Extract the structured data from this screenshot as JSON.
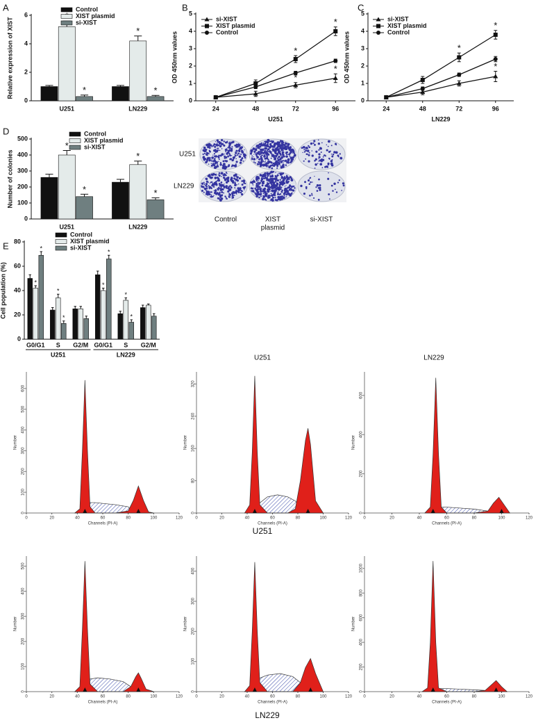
{
  "chart_data": [
    {
      "type": "bar",
      "panel_label": "A",
      "ylabel": "Relative expression of XIST",
      "categories": [
        "U251",
        "LN229"
      ],
      "series": [
        {
          "name": "Control",
          "color": "#111111",
          "values": [
            1,
            1
          ],
          "errors": [
            0.08,
            0.08
          ]
        },
        {
          "name": "XIST plasmid",
          "color": "#e4ebea",
          "values": [
            5.2,
            4.2
          ],
          "errors": [
            0.4,
            0.35
          ],
          "significance": [
            "*",
            "*"
          ]
        },
        {
          "name": "si-XIST",
          "color": "#6f7f80",
          "values": [
            0.3,
            0.3
          ],
          "errors": [
            0.1,
            0.08
          ],
          "significance": [
            "*",
            "*"
          ]
        }
      ],
      "ylim": [
        0,
        6
      ],
      "yticks": [
        0,
        2,
        4,
        6
      ]
    },
    {
      "type": "line",
      "panel_label": "B",
      "ylabel": "OD 450nm values",
      "xlabel": "U251",
      "x": [
        24,
        48,
        72,
        96
      ],
      "xlim": [
        12,
        108
      ],
      "xticks": [
        24,
        48,
        72,
        96
      ],
      "ylim": [
        0,
        5
      ],
      "yticks": [
        0,
        1,
        2,
        3,
        4,
        5
      ],
      "series": [
        {
          "name": "si-XIST",
          "marker": "triangle",
          "color": "#111111",
          "values": [
            0.2,
            0.4,
            0.9,
            1.3
          ],
          "errors": [
            0.05,
            0.15,
            0.15,
            0.25
          ],
          "significance": [
            null,
            null,
            "*",
            "*"
          ]
        },
        {
          "name": "XIST plasmid",
          "marker": "square",
          "color": "#111111",
          "values": [
            0.2,
            1.0,
            2.4,
            4.0
          ],
          "errors": [
            0.05,
            0.2,
            0.2,
            0.25
          ],
          "significance": [
            null,
            null,
            "*",
            "*"
          ]
        },
        {
          "name": "Control",
          "marker": "circle",
          "color": "#111111",
          "values": [
            0.2,
            0.8,
            1.6,
            2.3
          ],
          "errors": [
            0.05,
            0.1,
            0.1,
            0.1
          ]
        }
      ]
    },
    {
      "type": "line",
      "panel_label": "C",
      "ylabel": "OD 450nm values",
      "xlabel": "LN229",
      "x": [
        24,
        48,
        72,
        96
      ],
      "xlim": [
        12,
        108
      ],
      "xticks": [
        24,
        48,
        72,
        96
      ],
      "ylim": [
        0,
        5
      ],
      "yticks": [
        0,
        1,
        2,
        3,
        4,
        5
      ],
      "series": [
        {
          "name": "si-XIST",
          "marker": "triangle",
          "color": "#111111",
          "values": [
            0.2,
            0.5,
            1.0,
            1.4
          ],
          "errors": [
            0.05,
            0.15,
            0.15,
            0.3
          ],
          "significance": [
            null,
            null,
            "*",
            "*"
          ]
        },
        {
          "name": "XIST plasmid",
          "marker": "square",
          "color": "#111111",
          "values": [
            0.2,
            1.2,
            2.5,
            3.8
          ],
          "errors": [
            0.05,
            0.2,
            0.25,
            0.25
          ],
          "significance": [
            null,
            null,
            "*",
            "*"
          ]
        },
        {
          "name": "Control",
          "marker": "circle",
          "color": "#111111",
          "values": [
            0.2,
            0.7,
            1.5,
            2.4
          ],
          "errors": [
            0.05,
            0.1,
            0.1,
            0.15
          ]
        }
      ]
    },
    {
      "type": "bar",
      "panel_label": "D",
      "ylabel": "Number of colonies",
      "categories": [
        "U251",
        "LN229"
      ],
      "series": [
        {
          "name": "Control",
          "color": "#111111",
          "values": [
            260,
            230
          ],
          "errors": [
            20,
            18
          ]
        },
        {
          "name": "XIST plasmid",
          "color": "#e4ebea",
          "values": [
            400,
            340
          ],
          "errors": [
            28,
            22
          ],
          "significance": [
            "*",
            "*"
          ]
        },
        {
          "name": "si-XIST",
          "color": "#6f7f80",
          "values": [
            140,
            120
          ],
          "errors": [
            15,
            12
          ],
          "significance": [
            "*",
            "*"
          ]
        }
      ],
      "ylim": [
        0,
        500
      ],
      "yticks": [
        0,
        100,
        200,
        300,
        400,
        500
      ]
    },
    {
      "type": "bar",
      "panel_label": "E",
      "ylabel": "Cell population (%)",
      "categories": [
        "G0/G1",
        "S",
        "G2/M",
        "G0/G1",
        "S",
        "G2/M"
      ],
      "groups": [
        "U251",
        "LN229"
      ],
      "series": [
        {
          "name": "Control",
          "color": "#111111",
          "values": [
            50,
            24,
            25,
            53,
            21,
            26
          ],
          "errors": [
            3,
            2,
            2,
            3,
            2,
            2
          ]
        },
        {
          "name": "XIST plasmid",
          "color": "#e4ebea",
          "values": [
            42,
            34,
            25,
            40,
            32,
            28
          ],
          "errors": [
            2,
            3,
            2,
            2,
            2,
            1
          ],
          "significance": [
            "*",
            "*",
            null,
            "*",
            "*",
            null
          ]
        },
        {
          "name": "si-XIST",
          "color": "#6f7f80",
          "values": [
            69,
            13,
            17,
            66,
            14,
            19
          ],
          "errors": [
            3,
            2,
            2,
            3,
            2,
            2
          ],
          "significance": [
            "*",
            "*",
            null,
            "*",
            "*",
            null
          ]
        }
      ],
      "ylim": [
        0,
        80
      ],
      "yticks": [
        0,
        20,
        40,
        60,
        80
      ]
    },
    {
      "type": "area",
      "xlabel": "Channels (PI-A)",
      "ylabel": "Number",
      "x": [
        38,
        42,
        44,
        46,
        48,
        50,
        54,
        70,
        80,
        84,
        88,
        92,
        96,
        100
      ],
      "series": [
        {
          "color": "#3848a8",
          "fill": "hatch",
          "values": [
            0,
            0,
            0,
            0,
            40,
            50,
            50,
            40,
            30,
            0,
            0,
            0,
            0,
            0
          ]
        },
        {
          "color": "#e0201a",
          "values": [
            0,
            20,
            300,
            640,
            300,
            30,
            0,
            0,
            10,
            60,
            130,
            60,
            5,
            0
          ]
        }
      ],
      "peak_markers": [
        46,
        88
      ],
      "xlim": [
        0,
        120
      ],
      "xticks": [
        0,
        20,
        40,
        60,
        80,
        100,
        120
      ],
      "ylim": [
        0,
        680
      ],
      "yticks": [
        0,
        100,
        200,
        300,
        400,
        500,
        600
      ]
    },
    {
      "type": "area",
      "xlabel": "Channels (PI-A)",
      "ylabel": "Number",
      "x": [
        38,
        42,
        44,
        46,
        48,
        50,
        56,
        64,
        72,
        78,
        82,
        86,
        88,
        90,
        94,
        100
      ],
      "series": [
        {
          "color": "#3848a8",
          "fill": "hatch",
          "values": [
            0,
            0,
            0,
            0,
            10,
            25,
            40,
            45,
            40,
            30,
            15,
            0,
            0,
            0,
            0,
            0
          ]
        },
        {
          "color": "#e0201a",
          "values": [
            0,
            20,
            150,
            340,
            150,
            20,
            0,
            0,
            0,
            10,
            80,
            180,
            210,
            170,
            30,
            0
          ]
        }
      ],
      "peak_markers": [
        46,
        88
      ],
      "xlim": [
        0,
        120
      ],
      "xticks": [
        0,
        20,
        40,
        60,
        80,
        100,
        120
      ],
      "ylim": [
        0,
        350
      ],
      "yticks": [
        0,
        80,
        160,
        240,
        320
      ]
    },
    {
      "type": "area",
      "xlabel": "Channels (PI-A)",
      "ylabel": "Number",
      "x": [
        44,
        48,
        50,
        52,
        54,
        56,
        60,
        70,
        80,
        90,
        94,
        98,
        102,
        106
      ],
      "series": [
        {
          "color": "#3848a8",
          "fill": "hatch",
          "values": [
            0,
            0,
            0,
            0,
            20,
            30,
            30,
            25,
            20,
            10,
            0,
            0,
            0,
            0
          ]
        },
        {
          "color": "#e0201a",
          "values": [
            0,
            30,
            300,
            690,
            300,
            30,
            0,
            0,
            0,
            10,
            50,
            80,
            40,
            0
          ]
        }
      ],
      "peak_markers": [
        50,
        100
      ],
      "xlim": [
        0,
        120
      ],
      "xticks": [
        0,
        20,
        40,
        60,
        80,
        100,
        120
      ],
      "ylim": [
        0,
        720
      ],
      "yticks": [
        0,
        200,
        400,
        600
      ]
    },
    {
      "type": "area",
      "xlabel": "Channels (PI-A)",
      "ylabel": "Number",
      "x": [
        38,
        42,
        44,
        46,
        48,
        50,
        56,
        66,
        76,
        82,
        86,
        88,
        90,
        94,
        100
      ],
      "series": [
        {
          "color": "#3848a8",
          "fill": "hatch",
          "values": [
            0,
            0,
            0,
            0,
            30,
            50,
            55,
            50,
            40,
            20,
            0,
            0,
            0,
            0,
            0
          ]
        },
        {
          "color": "#e0201a",
          "values": [
            0,
            20,
            250,
            520,
            250,
            30,
            0,
            0,
            0,
            20,
            60,
            75,
            55,
            10,
            0
          ]
        }
      ],
      "peak_markers": [
        46,
        88
      ],
      "xlim": [
        0,
        120
      ],
      "xticks": [
        0,
        20,
        40,
        60,
        80,
        100,
        120
      ],
      "ylim": [
        0,
        540
      ],
      "yticks": [
        0,
        100,
        200,
        300,
        400,
        500
      ]
    },
    {
      "type": "area",
      "xlabel": "Channels (PI-A)",
      "ylabel": "Number",
      "x": [
        38,
        42,
        44,
        46,
        48,
        50,
        56,
        66,
        76,
        82,
        86,
        90,
        94,
        100
      ],
      "series": [
        {
          "color": "#3848a8",
          "fill": "hatch",
          "values": [
            0,
            0,
            0,
            0,
            30,
            45,
            55,
            60,
            50,
            30,
            0,
            0,
            0,
            0
          ]
        },
        {
          "color": "#e0201a",
          "values": [
            0,
            20,
            200,
            430,
            200,
            30,
            0,
            0,
            0,
            30,
            80,
            110,
            60,
            0
          ]
        }
      ],
      "peak_markers": [
        46,
        90
      ],
      "xlim": [
        0,
        120
      ],
      "xticks": [
        0,
        20,
        40,
        60,
        80,
        100,
        120
      ],
      "ylim": [
        0,
        450
      ],
      "yticks": [
        0,
        100,
        200,
        300,
        400
      ]
    },
    {
      "type": "area",
      "xlabel": "Channels (PI-A)",
      "ylabel": "Number",
      "x": [
        42,
        46,
        48,
        50,
        52,
        54,
        60,
        70,
        80,
        88,
        92,
        96,
        100,
        104
      ],
      "series": [
        {
          "color": "#3848a8",
          "fill": "hatch",
          "values": [
            0,
            0,
            0,
            0,
            20,
            25,
            25,
            20,
            15,
            10,
            0,
            0,
            0,
            0
          ]
        },
        {
          "color": "#e0201a",
          "values": [
            0,
            30,
            400,
            1060,
            400,
            30,
            0,
            0,
            0,
            10,
            50,
            90,
            40,
            0
          ]
        }
      ],
      "peak_markers": [
        50,
        96
      ],
      "xlim": [
        0,
        120
      ],
      "xticks": [
        0,
        20,
        40,
        60,
        80,
        100,
        120
      ],
      "ylim": [
        0,
        1100
      ],
      "yticks": [
        0,
        200,
        400,
        600,
        800,
        1000
      ]
    }
  ],
  "colony_panel": {
    "rows": [
      "U251",
      "LN229"
    ],
    "columns": [
      [
        "Control"
      ],
      [
        "XIST",
        "plasmid"
      ],
      [
        "si-XIST"
      ]
    ]
  },
  "figure_labels": {
    "top": [
      "U251",
      "LN229"
    ],
    "rows": [
      "U251",
      "LN229"
    ]
  }
}
